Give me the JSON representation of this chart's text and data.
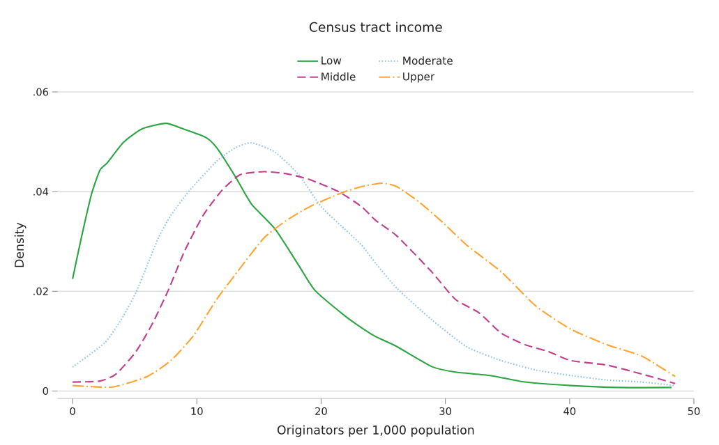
{
  "chart_data": {
    "type": "line",
    "legend_title": "Census tract income",
    "xlabel": "Originators per 1,000 population",
    "ylabel": "Density",
    "xlim": [
      -1.2,
      50
    ],
    "ylim": [
      -0.0015,
      0.06
    ],
    "xticks": [
      0,
      10,
      20,
      30,
      40,
      50
    ],
    "yticks": [
      0,
      {
        "value": 0.02,
        "label": ".02"
      },
      {
        "value": 0.04,
        "label": ".04"
      },
      {
        "value": 0.06,
        "label": ".06"
      }
    ],
    "grid": "y",
    "legend": "top",
    "series": [
      {
        "name": "Low",
        "color": "#2ca543",
        "line_style": "solid",
        "x": [
          0,
          0.7,
          1.5,
          2.2,
          2.8,
          4.1,
          5.6,
          7.5,
          9,
          10.7,
          11.6,
          13.1,
          14.4,
          16.3,
          18.2,
          19.5,
          21.9,
          23.25,
          24.4,
          26.1,
          28.9,
          30.8,
          33.6,
          36.4,
          40.1,
          43.9,
          48.2
        ],
        "values": [
          0.0225,
          0.0307,
          0.0393,
          0.0443,
          0.0458,
          0.0499,
          0.0526,
          0.0537,
          0.0525,
          0.0509,
          0.0488,
          0.043,
          0.0375,
          0.0325,
          0.0252,
          0.0202,
          0.0151,
          0.0127,
          0.0109,
          0.0089,
          0.0049,
          0.0038,
          0.0031,
          0.0018,
          0.0011,
          0.0007,
          0.0007
        ]
      },
      {
        "name": "Moderate",
        "color": "#8cc0ea",
        "line_style": "dotted",
        "x": [
          0,
          2.6,
          4.1,
          5.1,
          6,
          6.9,
          7.9,
          9.4,
          11.6,
          13.1,
          14.4,
          16.3,
          18.2,
          20,
          21.9,
          23.25,
          24.4,
          26.1,
          28.9,
          31.7,
          34.5,
          37.3,
          40.1,
          43,
          45.8,
          48.5
        ],
        "values": [
          0.0048,
          0.0097,
          0.0151,
          0.0198,
          0.0252,
          0.0307,
          0.0352,
          0.0402,
          0.0461,
          0.0488,
          0.0498,
          0.0479,
          0.0434,
          0.037,
          0.0325,
          0.0293,
          0.0256,
          0.0206,
          0.0143,
          0.0089,
          0.0061,
          0.0042,
          0.0031,
          0.0022,
          0.0018,
          0.0011
        ]
      },
      {
        "name": "Middle",
        "color": "#c0408e",
        "line_style": "dashed",
        "x": [
          0,
          2.2,
          3.5,
          5.1,
          6.4,
          7.7,
          9,
          10.5,
          12,
          13.5,
          15.4,
          17.2,
          19.1,
          21.4,
          23.25,
          24.4,
          26.1,
          28.9,
          30.8,
          32.7,
          34.5,
          36.4,
          38.3,
          40.1,
          43,
          45.8,
          48.5
        ],
        "values": [
          0.0018,
          0.002,
          0.0034,
          0.0079,
          0.0134,
          0.0202,
          0.028,
          0.0352,
          0.0402,
          0.0434,
          0.044,
          0.0436,
          0.0424,
          0.04,
          0.037,
          0.0342,
          0.0311,
          0.0239,
          0.0184,
          0.0157,
          0.0116,
          0.0093,
          0.0079,
          0.0061,
          0.0052,
          0.0034,
          0.0015
        ]
      },
      {
        "name": "Upper",
        "color": "#ffa433",
        "line_style": "dashdot",
        "x": [
          0,
          3.2,
          6,
          7.9,
          9.7,
          11.6,
          13.5,
          15.4,
          17.2,
          19.1,
          21.6,
          23.25,
          24.9,
          26.1,
          27.9,
          29.8,
          31.7,
          34.5,
          37.3,
          40.1,
          43,
          45.8,
          48.5
        ],
        "values": [
          0.0011,
          0.0008,
          0.0029,
          0.0061,
          0.011,
          0.0184,
          0.0247,
          0.0307,
          0.0342,
          0.037,
          0.0397,
          0.041,
          0.0417,
          0.041,
          0.0379,
          0.0338,
          0.0293,
          0.0239,
          0.017,
          0.0124,
          0.0093,
          0.007,
          0.0029
        ]
      }
    ]
  }
}
